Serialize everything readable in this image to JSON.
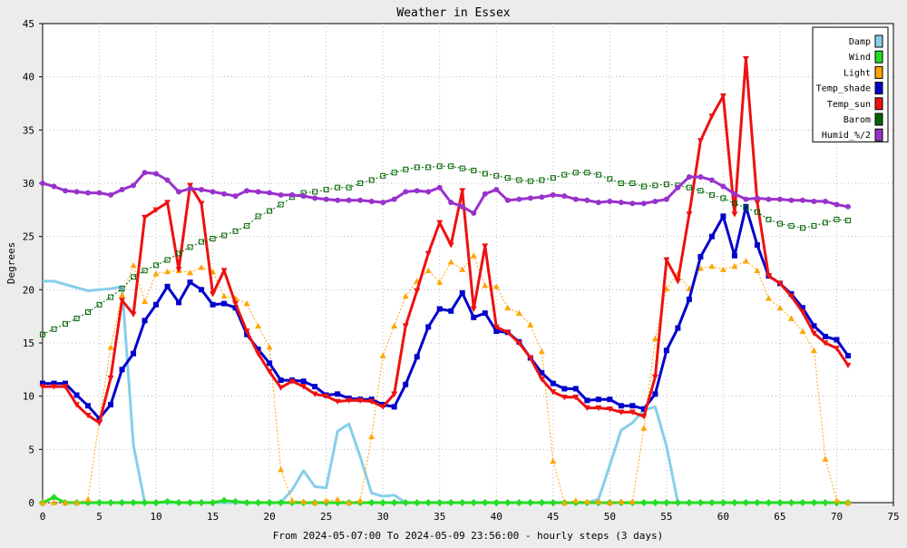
{
  "chart_data": {
    "type": "line",
    "title": "Weather in Essex",
    "xlabel": "From 2024-05-07:00 To 2024-05-09 23:56:00 - hourly steps (3 days)",
    "ylabel": "Degrees",
    "xlim": [
      0,
      75
    ],
    "ylim": [
      0,
      45
    ],
    "x_ticks": [
      0,
      5,
      10,
      15,
      20,
      25,
      30,
      35,
      40,
      45,
      50,
      55,
      60,
      65,
      70,
      75
    ],
    "y_ticks": [
      0,
      5,
      10,
      15,
      20,
      25,
      30,
      35,
      40,
      45
    ],
    "grid": true,
    "legend_position": "top-right",
    "series": [
      {
        "name": "Damp",
        "color": "#87ceeb",
        "width": 3,
        "dashed": false,
        "marker": "none",
        "x": [
          0,
          1,
          2,
          3,
          4,
          5,
          6,
          7,
          8,
          9,
          10,
          11,
          12,
          13,
          14,
          15,
          16,
          17,
          18,
          19,
          20,
          21,
          22,
          23,
          24,
          25,
          26,
          27,
          28,
          29,
          30,
          31,
          32,
          33,
          34,
          35,
          36,
          37,
          38,
          39,
          40,
          41,
          42,
          43,
          44,
          45,
          46,
          47,
          48,
          49,
          50,
          51,
          52,
          53,
          54,
          55,
          56,
          57,
          58,
          59,
          60,
          61,
          62,
          63,
          64,
          65,
          66,
          67,
          68,
          69,
          70,
          71
        ],
        "y": [
          20.8,
          20.8,
          20.5,
          20.2,
          19.9,
          20.0,
          20.1,
          20.3,
          5.4,
          0,
          0,
          0,
          0,
          0,
          0,
          0,
          0,
          0,
          0,
          0,
          0,
          0,
          1.2,
          3.0,
          1.5,
          1.4,
          6.7,
          7.4,
          4.3,
          0.9,
          0.6,
          0.7,
          0,
          0,
          0,
          0,
          0,
          0,
          0,
          0,
          0,
          0,
          0,
          0,
          0,
          0,
          0,
          0,
          0,
          0.3,
          3.5,
          6.8,
          7.5,
          8.7,
          9.0,
          5.3,
          0,
          0,
          0,
          0,
          0,
          0,
          0,
          0,
          0,
          0,
          0,
          0,
          0,
          0,
          0,
          0
        ]
      },
      {
        "name": "Wind",
        "color": "#22dd22",
        "width": 3,
        "dashed": false,
        "marker": "diamond",
        "x": [
          0,
          1,
          2,
          3,
          4,
          5,
          6,
          7,
          8,
          9,
          10,
          11,
          12,
          13,
          14,
          15,
          16,
          17,
          18,
          19,
          20,
          21,
          22,
          23,
          24,
          25,
          26,
          27,
          28,
          29,
          30,
          31,
          32,
          33,
          34,
          35,
          36,
          37,
          38,
          39,
          40,
          41,
          42,
          43,
          44,
          45,
          46,
          47,
          48,
          49,
          50,
          51,
          52,
          53,
          54,
          55,
          56,
          57,
          58,
          59,
          60,
          61,
          62,
          63,
          64,
          65,
          66,
          67,
          68,
          69,
          70,
          71
        ],
        "y": [
          0,
          0.5,
          0,
          0,
          0,
          0,
          0,
          0,
          0,
          0,
          0,
          0.1,
          0,
          0,
          0,
          0,
          0.2,
          0.1,
          0,
          0,
          0,
          0,
          0,
          0,
          0,
          0,
          0,
          0,
          0,
          0,
          0,
          0,
          0,
          0,
          0,
          0,
          0,
          0,
          0,
          0,
          0,
          0,
          0,
          0,
          0,
          0,
          0,
          0,
          0,
          0,
          0,
          0,
          0,
          0,
          0,
          0,
          0,
          0,
          0,
          0,
          0,
          0,
          0,
          0,
          0,
          0,
          0,
          0,
          0,
          0,
          0,
          0
        ]
      },
      {
        "name": "Light",
        "color": "#ffa500",
        "width": 1,
        "dashed": true,
        "marker": "triangle-up",
        "x": [
          0,
          1,
          2,
          3,
          4,
          5,
          6,
          7,
          8,
          9,
          10,
          11,
          12,
          13,
          14,
          15,
          16,
          17,
          18,
          19,
          20,
          21,
          22,
          23,
          24,
          25,
          26,
          27,
          28,
          29,
          30,
          31,
          32,
          33,
          34,
          35,
          36,
          37,
          38,
          39,
          40,
          41,
          42,
          43,
          44,
          45,
          46,
          47,
          48,
          49,
          50,
          51,
          52,
          53,
          54,
          55,
          56,
          57,
          58,
          59,
          60,
          61,
          62,
          63,
          64,
          65,
          66,
          67,
          68,
          69,
          70,
          71
        ],
        "y": [
          0,
          0,
          0,
          0,
          0.3,
          7.8,
          14.6,
          19.5,
          22.3,
          18.9,
          21.5,
          21.7,
          21.8,
          21.6,
          22.1,
          21.7,
          19.4,
          19.2,
          18.7,
          16.6,
          14.6,
          3.1,
          0.2,
          0.1,
          0,
          0.2,
          0.3,
          0,
          0.2,
          6.2,
          13.8,
          16.6,
          19.4,
          20.8,
          21.8,
          20.7,
          22.6,
          21.9,
          23.2,
          20.4,
          20.3,
          18.3,
          17.8,
          16.7,
          14.2,
          3.9,
          0,
          0.2,
          0.1,
          0.1,
          0,
          0.1,
          0.1,
          7.0,
          15.4,
          20.1,
          21.5,
          20.1,
          22.0,
          22.2,
          21.9,
          22.2,
          22.7,
          21.8,
          19.2,
          18.3,
          17.3,
          16.1,
          14.3,
          4.1,
          0.2,
          0
        ]
      },
      {
        "name": "Temp_shade",
        "color": "#0000cc",
        "width": 3,
        "dashed": false,
        "marker": "square",
        "x": [
          0,
          1,
          2,
          3,
          4,
          5,
          6,
          7,
          8,
          9,
          10,
          11,
          12,
          13,
          14,
          15,
          16,
          17,
          18,
          19,
          20,
          21,
          22,
          23,
          24,
          25,
          26,
          27,
          28,
          29,
          30,
          31,
          32,
          33,
          34,
          35,
          36,
          37,
          38,
          39,
          40,
          41,
          42,
          43,
          44,
          45,
          46,
          47,
          48,
          49,
          50,
          51,
          52,
          53,
          54,
          55,
          56,
          57,
          58,
          59,
          60,
          61,
          62,
          63,
          64,
          65,
          66,
          67,
          68,
          69,
          70,
          71
        ],
        "y": [
          11.2,
          11.2,
          11.2,
          10.1,
          9.1,
          7.9,
          9.2,
          12.5,
          14.0,
          17.1,
          18.6,
          20.3,
          18.8,
          20.7,
          20.0,
          18.6,
          18.7,
          18.3,
          15.8,
          14.4,
          13.1,
          11.5,
          11.5,
          11.4,
          10.9,
          10.1,
          10.2,
          9.8,
          9.7,
          9.7,
          9.2,
          9.0,
          11.1,
          13.7,
          16.5,
          18.2,
          18.0,
          19.7,
          17.4,
          17.8,
          16.1,
          16.0,
          15.1,
          13.6,
          12.2,
          11.2,
          10.7,
          10.7,
          9.6,
          9.7,
          9.7,
          9.1,
          9.1,
          8.8,
          10.2,
          14.3,
          16.4,
          19.1,
          23.1,
          25.0,
          26.9,
          23.2,
          27.8,
          24.2,
          21.3,
          20.6,
          19.6,
          18.3,
          16.6,
          15.6,
          15.3,
          13.8
        ]
      },
      {
        "name": "Temp_sun",
        "color": "#ee1111",
        "width": 3,
        "dashed": false,
        "marker": "triangle-down",
        "x": [
          0,
          1,
          2,
          3,
          4,
          5,
          6,
          7,
          8,
          9,
          10,
          11,
          12,
          13,
          14,
          15,
          16,
          17,
          18,
          19,
          20,
          21,
          22,
          23,
          24,
          25,
          26,
          27,
          28,
          29,
          30,
          31,
          32,
          33,
          34,
          35,
          36,
          37,
          38,
          39,
          40,
          41,
          42,
          43,
          44,
          45,
          46,
          47,
          48,
          49,
          50,
          51,
          52,
          53,
          54,
          55,
          56,
          57,
          58,
          59,
          60,
          61,
          62,
          63,
          64,
          65,
          66,
          67,
          68,
          69,
          70,
          71
        ],
        "y": [
          10.9,
          10.9,
          10.9,
          9.2,
          8.2,
          7.5,
          11.7,
          19.0,
          17.7,
          26.8,
          27.5,
          28.2,
          21.9,
          29.8,
          28.1,
          19.6,
          21.8,
          18.7,
          16.1,
          14.0,
          12.3,
          10.8,
          11.4,
          10.9,
          10.2,
          10.0,
          9.5,
          9.6,
          9.6,
          9.5,
          9.0,
          10.2,
          16.6,
          19.9,
          23.4,
          26.3,
          24.2,
          29.3,
          18.2,
          24.1,
          16.5,
          16.0,
          15.0,
          13.6,
          11.6,
          10.4,
          9.9,
          9.9,
          8.9,
          8.9,
          8.8,
          8.5,
          8.5,
          8.1,
          11.8,
          22.8,
          20.8,
          27.1,
          34.0,
          36.3,
          38.2,
          27.1,
          41.7,
          28.2,
          21.3,
          20.6,
          19.4,
          17.9,
          15.9,
          15.0,
          14.5,
          12.9
        ]
      },
      {
        "name": "Barom",
        "color": "#006400",
        "width": 1,
        "dashed": true,
        "marker": "box",
        "x": [
          0,
          1,
          2,
          3,
          4,
          5,
          6,
          7,
          8,
          9,
          10,
          11,
          12,
          13,
          14,
          15,
          16,
          17,
          18,
          19,
          20,
          21,
          22,
          23,
          24,
          25,
          26,
          27,
          28,
          29,
          30,
          31,
          32,
          33,
          34,
          35,
          36,
          37,
          38,
          39,
          40,
          41,
          42,
          43,
          44,
          45,
          46,
          47,
          48,
          49,
          50,
          51,
          52,
          53,
          54,
          55,
          56,
          57,
          58,
          59,
          60,
          61,
          62,
          63,
          64,
          65,
          66,
          67,
          68,
          69,
          70,
          71
        ],
        "y": [
          15.8,
          16.3,
          16.8,
          17.3,
          17.9,
          18.6,
          19.3,
          20.1,
          21.2,
          21.8,
          22.3,
          22.8,
          23.4,
          24.0,
          24.5,
          24.8,
          25.1,
          25.5,
          26.0,
          26.9,
          27.4,
          28.0,
          28.7,
          29.1,
          29.2,
          29.4,
          29.6,
          29.6,
          30.0,
          30.3,
          30.7,
          31.0,
          31.3,
          31.5,
          31.5,
          31.6,
          31.6,
          31.4,
          31.2,
          30.9,
          30.7,
          30.5,
          30.3,
          30.2,
          30.3,
          30.5,
          30.8,
          31.0,
          31.0,
          30.8,
          30.4,
          30.0,
          30.0,
          29.7,
          29.8,
          29.9,
          29.8,
          29.6,
          29.3,
          28.9,
          28.6,
          28.1,
          27.7,
          27.3,
          26.6,
          26.2,
          26.0,
          25.8,
          26.0,
          26.3,
          26.6,
          26.5
        ]
      },
      {
        "name": "Humid_%/2",
        "color": "#9932cc",
        "width": 3,
        "dashed": false,
        "marker": "circle",
        "x": [
          0,
          1,
          2,
          3,
          4,
          5,
          6,
          7,
          8,
          9,
          10,
          11,
          12,
          13,
          14,
          15,
          16,
          17,
          18,
          19,
          20,
          21,
          22,
          23,
          24,
          25,
          26,
          27,
          28,
          29,
          30,
          31,
          32,
          33,
          34,
          35,
          36,
          37,
          38,
          39,
          40,
          41,
          42,
          43,
          44,
          45,
          46,
          47,
          48,
          49,
          50,
          51,
          52,
          53,
          54,
          55,
          56,
          57,
          58,
          59,
          60,
          61,
          62,
          63,
          64,
          65,
          66,
          67,
          68,
          69,
          70,
          71
        ],
        "y": [
          30.0,
          29.7,
          29.3,
          29.2,
          29.1,
          29.1,
          28.9,
          29.4,
          29.8,
          31.0,
          30.9,
          30.3,
          29.2,
          29.5,
          29.4,
          29.2,
          29.0,
          28.8,
          29.3,
          29.2,
          29.1,
          28.9,
          28.9,
          28.8,
          28.6,
          28.5,
          28.4,
          28.4,
          28.4,
          28.3,
          28.2,
          28.5,
          29.2,
          29.3,
          29.2,
          29.6,
          28.2,
          27.8,
          27.2,
          29.0,
          29.4,
          28.4,
          28.5,
          28.6,
          28.7,
          28.9,
          28.8,
          28.5,
          28.4,
          28.2,
          28.3,
          28.2,
          28.1,
          28.1,
          28.3,
          28.5,
          29.6,
          30.6,
          30.6,
          30.3,
          29.7,
          29.0,
          28.5,
          28.6,
          28.5,
          28.5,
          28.4,
          28.4,
          28.3,
          28.3,
          28.0,
          27.8
        ]
      }
    ]
  }
}
